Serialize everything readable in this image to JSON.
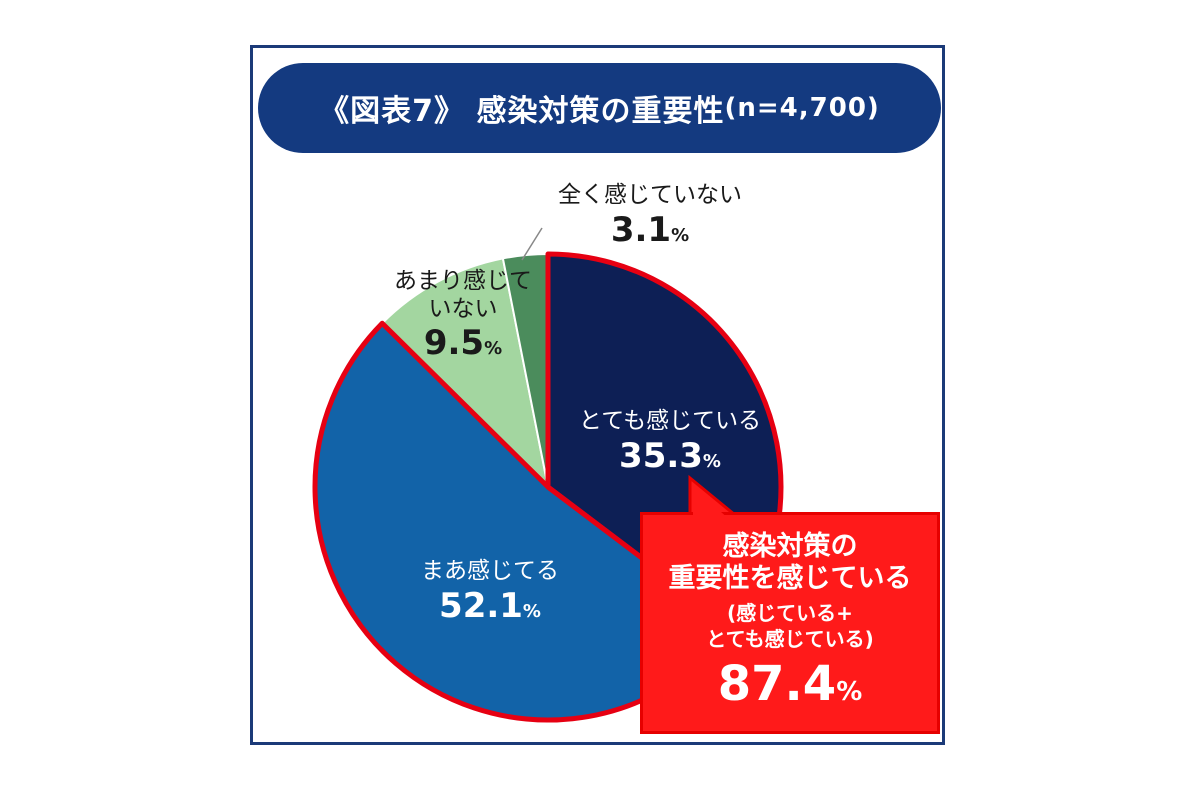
{
  "title": {
    "main": "《図表7》 感染対策の重要性",
    "n": "(n=4,700)"
  },
  "chart_data": {
    "type": "pie",
    "slices": [
      {
        "label": "とても感じている",
        "value": 35.3,
        "color": "#0d1f55"
      },
      {
        "label": "まあ感じてる",
        "value": 52.1,
        "color": "#1263a8"
      },
      {
        "label": "あまり感じていない",
        "label_lines": [
          "あまり感じて",
          "いない"
        ],
        "value": 9.5,
        "color": "#a3d6a0"
      },
      {
        "label": "全く感じていない",
        "value": 3.1,
        "color": "#4b8c5c"
      }
    ],
    "highlight_color": "#e60012"
  },
  "slice_labels": {
    "s0": {
      "name": "とても感じている",
      "pct": "35.3"
    },
    "s1": {
      "name": "まあ感じてる",
      "pct": "52.1"
    },
    "s2": {
      "name1": "あまり感じて",
      "name2": "いない",
      "pct": "9.5"
    },
    "s3": {
      "name": "全く感じていない",
      "pct": "3.1"
    }
  },
  "pct_unit": "%",
  "callout": {
    "line1": "感染対策の",
    "line2": "重要性を感じている",
    "line3": "(感じている+",
    "line4": "とても感じている)",
    "value": "87.4",
    "unit": "%"
  }
}
